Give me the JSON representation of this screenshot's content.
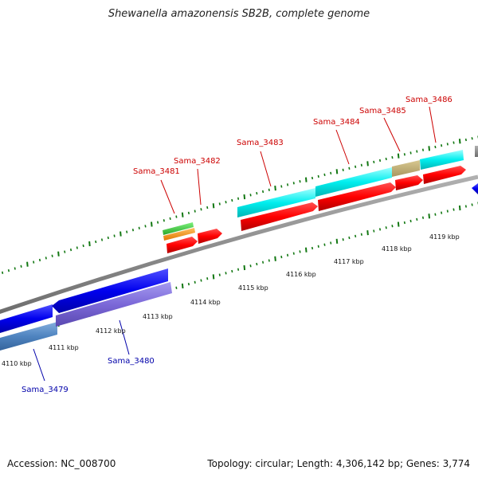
{
  "title": "Shewanella amazonensis SB2B, complete genome",
  "footer": {
    "accession": "Accession: NC_008700",
    "summary": "Topology: circular; Length: 4,306,142 bp; Genes: 3,774"
  },
  "colors": {
    "forward_label": "#cc0000",
    "reverse_label": "#0000aa",
    "backbone": "#888888",
    "tick": "#117711"
  },
  "scale_labels": [
    "4110 kbp",
    "4111 kbp",
    "4112 kbp",
    "4113 kbp",
    "4114 kbp",
    "4115 kbp",
    "4116 kbp",
    "4117 kbp",
    "4118 kbp",
    "4119 kbp"
  ],
  "gene_labels": [
    {
      "text": "Sama_3479",
      "strand": "reverse"
    },
    {
      "text": "Sama_3480",
      "strand": "reverse"
    },
    {
      "text": "Sama_3481",
      "strand": "forward"
    },
    {
      "text": "Sama_3482",
      "strand": "forward"
    },
    {
      "text": "Sama_3483",
      "strand": "forward"
    },
    {
      "text": "Sama_3484",
      "strand": "forward"
    },
    {
      "text": "Sama_3485",
      "strand": "forward"
    },
    {
      "text": "Sama_3486",
      "strand": "forward"
    }
  ]
}
